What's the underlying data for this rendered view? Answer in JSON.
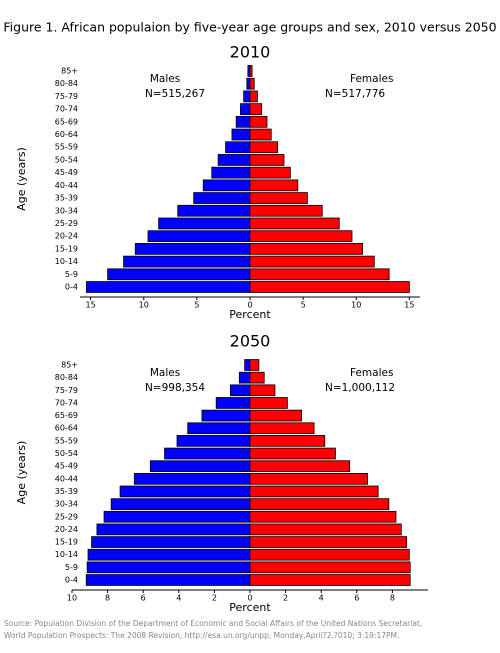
{
  "title": "Figure 1. African populaion by five-year age groups and sex, 2010 versus 2050",
  "source": [
    "Source: Population Division of the Department of Economic and Social Affairs of the United Nations Secretariat,",
    "World Population Prospects: The 2008 Revision, http://esa.un.org/unpp, Monday,April?2,?010; 3:19:17PM."
  ],
  "chart_data": [
    {
      "type": "pyramid",
      "title": "2010",
      "xlabel": "Percent",
      "ylabel": "Age (years)",
      "categories": [
        "0-4",
        "5-9",
        "10-14",
        "15-19",
        "20-24",
        "25-29",
        "30-34",
        "35-39",
        "40-44",
        "45-49",
        "50-54",
        "55-59",
        "60-64",
        "65-69",
        "70-74",
        "75-79",
        "80-84",
        "85+"
      ],
      "series": [
        {
          "name": "Males",
          "label": "N=515,267",
          "color": "#0000ff",
          "values": [
            15.4,
            13.4,
            11.9,
            10.8,
            9.6,
            8.6,
            6.8,
            5.3,
            4.4,
            3.6,
            3.0,
            2.3,
            1.7,
            1.3,
            0.9,
            0.6,
            0.3,
            0.2
          ]
        },
        {
          "name": "Females",
          "label": "N=517,776",
          "color": "#ff0000",
          "values": [
            15.0,
            13.1,
            11.7,
            10.6,
            9.6,
            8.4,
            6.8,
            5.4,
            4.5,
            3.8,
            3.2,
            2.6,
            2.0,
            1.6,
            1.1,
            0.7,
            0.4,
            0.2
          ]
        }
      ],
      "xlim": [
        -16,
        16
      ],
      "xticks": [
        {
          "value": -15,
          "label": "15"
        },
        {
          "value": -10,
          "label": "10"
        },
        {
          "value": -5,
          "label": "5"
        },
        0,
        5,
        10,
        15
      ]
    },
    {
      "type": "pyramid",
      "title": "2050",
      "xlabel": "Percent",
      "ylabel": "Age (years)",
      "categories": [
        "0-4",
        "5-9",
        "10-14",
        "15-19",
        "20-24",
        "25-29",
        "30-34",
        "35-39",
        "40-44",
        "45-49",
        "50-54",
        "55-59",
        "60-64",
        "65-69",
        "70-74",
        "75-79",
        "80-84",
        "85+"
      ],
      "series": [
        {
          "name": "Males",
          "label": "N=998,354",
          "color": "#0000ff",
          "values": [
            9.2,
            9.15,
            9.1,
            8.9,
            8.6,
            8.2,
            7.8,
            7.3,
            6.5,
            5.6,
            4.8,
            4.1,
            3.5,
            2.7,
            1.9,
            1.1,
            0.6,
            0.3
          ]
        },
        {
          "name": "Females",
          "label": "N=1,000,112",
          "color": "#ff0000",
          "values": [
            9.0,
            9.0,
            8.95,
            8.8,
            8.5,
            8.2,
            7.8,
            7.2,
            6.6,
            5.6,
            4.8,
            4.2,
            3.6,
            2.9,
            2.1,
            1.4,
            0.8,
            0.5
          ]
        }
      ],
      "xlim": [
        -10,
        10
      ],
      "xticks": [
        {
          "value": -10,
          "label": "10"
        },
        {
          "value": -8,
          "label": "8"
        },
        {
          "value": -6,
          "label": "6"
        },
        {
          "value": -4,
          "label": "4"
        },
        {
          "value": -2,
          "label": "2"
        },
        0,
        2,
        4,
        6,
        8
      ]
    }
  ]
}
